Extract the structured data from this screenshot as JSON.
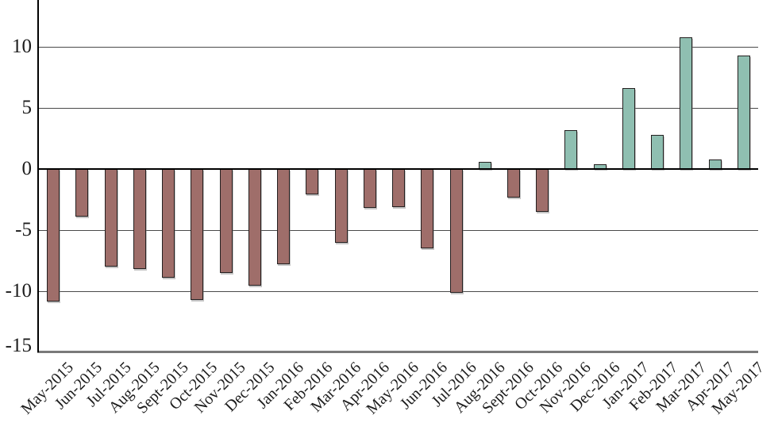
{
  "chart_data": {
    "type": "bar",
    "title": "",
    "xlabel": "",
    "ylabel": "",
    "categories": [
      "May-2015",
      "Jun-2015",
      "Jul-2015",
      "Aug-2015",
      "Sept-2015",
      "Oct-2015",
      "Nov-2015",
      "Dec-2015",
      "Jan-2016",
      "Feb-2016",
      "Mar-2016",
      "Apr-2016",
      "May-2016",
      "Jun-2016",
      "Jul-2016",
      "Aug-2016",
      "Sept-2016",
      "Oct-2016",
      "Nov-2016",
      "Dec-2016",
      "Jan-2017",
      "Feb-2017",
      "Mar-2017",
      "Apr-2017",
      "May-2017"
    ],
    "values": [
      -10.8,
      -3.9,
      -8.0,
      -8.2,
      -8.9,
      -10.7,
      -8.5,
      -9.5,
      -7.8,
      -2.1,
      -6.0,
      -3.2,
      -3.1,
      -6.5,
      -10.1,
      0.6,
      -2.3,
      -3.5,
      3.2,
      0.4,
      6.6,
      2.8,
      10.8,
      0.8,
      9.3
    ],
    "ylim": [
      -15,
      13.8
    ],
    "yticks": [
      10,
      5,
      0,
      -5,
      -10,
      -15
    ],
    "ytick_labels": [
      "10",
      "5",
      "0",
      "-5",
      "-10",
      "-15"
    ],
    "grid": true,
    "legend": "none",
    "colors": {
      "positive_bar": "#8FBFB1",
      "negative_bar": "#9F6E6A",
      "bar_border": "#242020",
      "gridline": "#4a4a4a",
      "zero_line": "#000000",
      "axis_line": "#000000",
      "bottom_border": "#7a7a7a",
      "label_text": "#1c1c1c"
    }
  }
}
